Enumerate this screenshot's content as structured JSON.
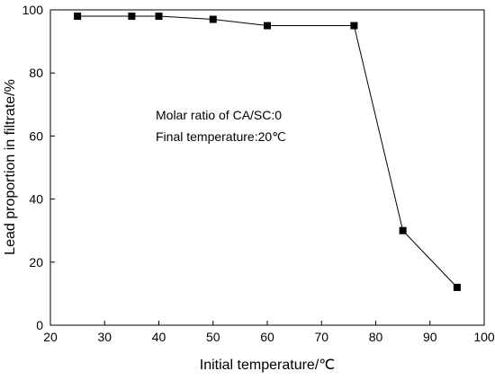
{
  "chart_data": {
    "type": "line",
    "title": "",
    "xlabel": "Initial temperature/℃",
    "ylabel": "Lead proportion in filtrate/%",
    "xlim": [
      20,
      100
    ],
    "ylim": [
      0,
      100
    ],
    "xticks": [
      20,
      30,
      40,
      50,
      60,
      70,
      80,
      90,
      100
    ],
    "yticks": [
      0,
      20,
      40,
      60,
      80,
      100
    ],
    "grid": false,
    "legend": "none",
    "series": [
      {
        "marker": "square",
        "color": "#000000",
        "x": [
          25,
          35,
          40,
          50,
          60,
          76,
          85,
          95
        ],
        "y": [
          98,
          98,
          98,
          97,
          95,
          95,
          30,
          12
        ]
      }
    ],
    "annotations": [
      "Molar ratio of CA/SC:0",
      "Final temperature:20℃"
    ]
  }
}
